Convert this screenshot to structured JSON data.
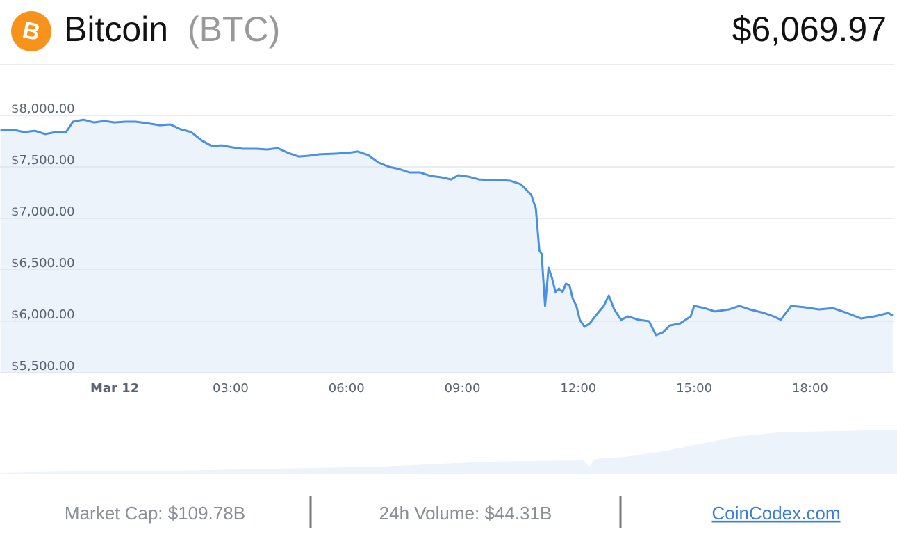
{
  "header": {
    "name": "Bitcoin",
    "symbol": "(BTC)",
    "price": "$6,069.97"
  },
  "footer": {
    "market_cap": "Market Cap: $109.78B",
    "volume": "24h Volume: $44.31B",
    "link": "CoinCodex.com"
  },
  "chart_data": {
    "type": "line",
    "color": "#4a90e2",
    "area_color": "#edf3fb",
    "grid": true,
    "x": [
      -2.96,
      -2.6,
      -2.34,
      -2.07,
      -1.8,
      -1.53,
      -1.26,
      -1.08,
      -0.81,
      -0.54,
      -0.27,
      0,
      0.27,
      0.54,
      0.81,
      1.17,
      1.44,
      1.71,
      1.98,
      2.25,
      2.51,
      2.78,
      3.05,
      3.32,
      3.68,
      3.95,
      4.22,
      4.49,
      4.76,
      5.03,
      5.3,
      5.66,
      6.02,
      6.29,
      6.56,
      6.83,
      7.1,
      7.36,
      7.63,
      7.9,
      8.17,
      8.44,
      8.71,
      8.89,
      9.16,
      9.43,
      9.7,
      9.97,
      10.24,
      10.51,
      10.78,
      10.9,
      10.99,
      11.05,
      11.14,
      11.23,
      11.32,
      11.41,
      11.5,
      11.59,
      11.68,
      11.77,
      11.86,
      11.95,
      12.04,
      12.16,
      12.3,
      12.48,
      12.66,
      12.79,
      12.93,
      13.11,
      13.29,
      13.56,
      13.83,
      14.01,
      14.19,
      14.37,
      14.64,
      14.91,
      15.0,
      15.27,
      15.54,
      15.9,
      16.17,
      16.44,
      16.8,
      17.06,
      17.24,
      17.51,
      17.87,
      18.23,
      18.59,
      18.95,
      19.32,
      19.67,
      20.03,
      20.14
    ],
    "values": [
      7858,
      7858,
      7838,
      7851,
      7818,
      7838,
      7838,
      7939,
      7959,
      7932,
      7946,
      7932,
      7939,
      7939,
      7926,
      7905,
      7912,
      7865,
      7838,
      7757,
      7703,
      7709,
      7689,
      7676,
      7676,
      7669,
      7682,
      7635,
      7601,
      7608,
      7622,
      7628,
      7635,
      7649,
      7615,
      7541,
      7500,
      7480,
      7446,
      7446,
      7412,
      7399,
      7378,
      7419,
      7405,
      7378,
      7372,
      7372,
      7365,
      7331,
      7230,
      7095,
      6689,
      6655,
      6149,
      6520,
      6419,
      6284,
      6318,
      6284,
      6365,
      6351,
      6216,
      6149,
      6014,
      5946,
      5980,
      6068,
      6149,
      6250,
      6115,
      6014,
      6047,
      6014,
      6000,
      5865,
      5892,
      5959,
      5980,
      6047,
      6149,
      6128,
      6095,
      6115,
      6149,
      6115,
      6081,
      6047,
      6014,
      6149,
      6135,
      6115,
      6128,
      6081,
      6027,
      6047,
      6081,
      6054
    ],
    "xlim": [
      -2.97,
      20.16
    ],
    "xticks": [
      {
        "value": 0,
        "label": "Mar 12"
      },
      {
        "value": 3,
        "label": "03:00"
      },
      {
        "value": 6,
        "label": "06:00"
      },
      {
        "value": 9,
        "label": "09:00"
      },
      {
        "value": 12,
        "label": "12:00"
      },
      {
        "value": 15,
        "label": "15:00"
      },
      {
        "value": 18,
        "label": "18:00"
      }
    ],
    "ylim": [
      5500,
      8000
    ],
    "yticks": [
      {
        "value": 8000,
        "label": "$8,000.00"
      },
      {
        "value": 7500,
        "label": "$7,500.00"
      },
      {
        "value": 7000,
        "label": "$7,000.00"
      },
      {
        "value": 6500,
        "label": "$6,500.00"
      },
      {
        "value": 6000,
        "label": "$6,000.00"
      },
      {
        "value": 5500,
        "label": "$5,500.00"
      }
    ]
  }
}
